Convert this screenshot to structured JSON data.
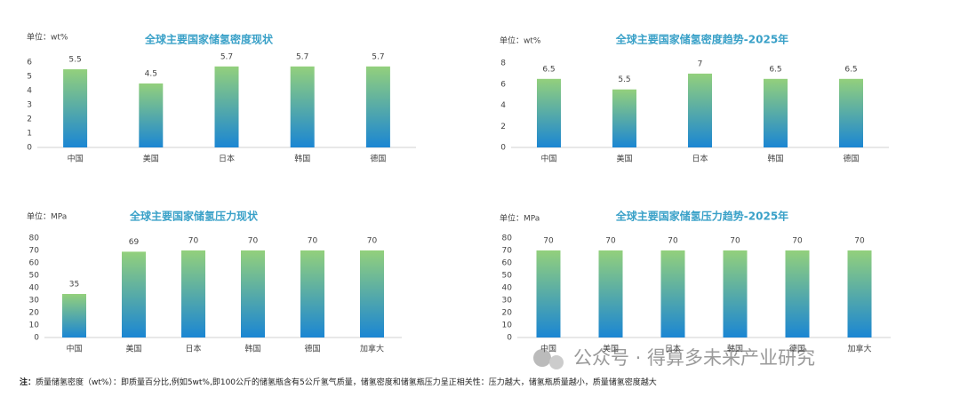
{
  "chart_data": [
    {
      "type": "bar",
      "title": "全球主要国家储氢密度现状",
      "unit": "单位：wt%",
      "categories": [
        "中国",
        "美国",
        "日本",
        "韩国",
        "德国"
      ],
      "values": [
        5.5,
        4.5,
        5.7,
        5.7,
        5.7
      ],
      "ylim": [
        0,
        6
      ],
      "yticks": [
        0,
        1,
        2,
        3,
        4,
        5,
        6
      ],
      "gradient": [
        "#93d07c",
        "#1b86d3"
      ],
      "title_color": "#3aa1c8"
    },
    {
      "type": "bar",
      "title": "全球主要国家储氢密度趋势-2025年",
      "unit": "单位：wt%",
      "categories": [
        "中国",
        "美国",
        "日本",
        "韩国",
        "德国"
      ],
      "values": [
        6.5,
        5.5,
        7,
        6.5,
        6.5
      ],
      "ylim": [
        0,
        8
      ],
      "yticks": [
        0,
        2,
        4,
        6,
        8
      ],
      "gradient": [
        "#93d07c",
        "#1b86d3"
      ],
      "title_color": "#3aa1c8"
    },
    {
      "type": "bar",
      "title": "全球主要国家储氢压力现状",
      "unit": "单位：MPa",
      "categories": [
        "中国",
        "美国",
        "日本",
        "韩国",
        "德国",
        "加拿大"
      ],
      "values": [
        35,
        69,
        70,
        70,
        70,
        70
      ],
      "ylim": [
        0,
        80
      ],
      "yticks": [
        0,
        10,
        20,
        30,
        40,
        50,
        60,
        70,
        80
      ],
      "gradient": [
        "#93d07c",
        "#1b86d3"
      ],
      "title_color": "#3aa1c8"
    },
    {
      "type": "bar",
      "title": "全球主要国家储氢压力趋势-2025年",
      "unit": "单位：MPa",
      "categories": [
        "中国",
        "美国",
        "日本",
        "韩国",
        "德国",
        "加拿大"
      ],
      "values": [
        70,
        70,
        70,
        70,
        70,
        70
      ],
      "ylim": [
        0,
        80
      ],
      "yticks": [
        0,
        10,
        20,
        30,
        40,
        50,
        60,
        70,
        80
      ],
      "gradient": [
        "#93d07c",
        "#1b86d3"
      ],
      "title_color": "#3aa1c8"
    }
  ],
  "footnote": {
    "label": "注：",
    "text": "质量储氢密度（wt%）：即质量百分比,例如5wt%,即100公斤的储氢瓶含有5公斤氢气质量，储氢密度和储氢瓶压力呈正相关性：压力越大，储氢瓶质量越小，质量储氢密度越大"
  },
  "watermark": "公众号 · 得算多未来产业研究"
}
